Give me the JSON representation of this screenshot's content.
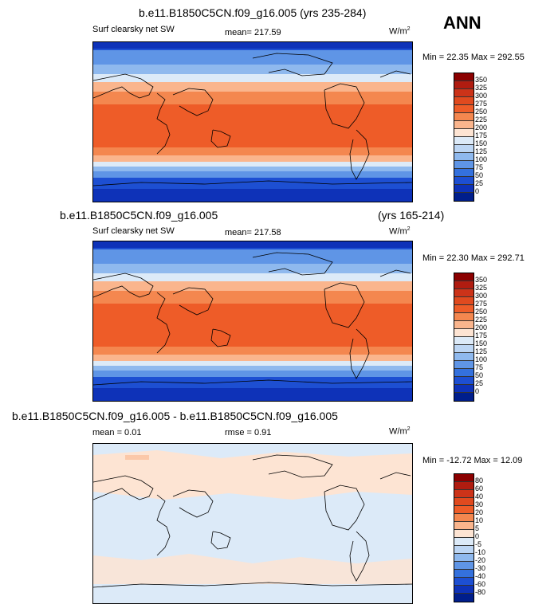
{
  "season": "ANN",
  "units": "W/m",
  "units_exp": "2",
  "panels": [
    {
      "title": "b.e11.B1850C5CN.f09_g16.005 (yrs 235-284)",
      "variable": "Surf clearsky net SW",
      "stat": "mean= 217.59",
      "minmax": "Min = 22.35 Max = 292.55",
      "levels": [
        "350",
        "325",
        "300",
        "275",
        "250",
        "225",
        "200",
        "175",
        "150",
        "125",
        "100",
        "75",
        "50",
        "25",
        "0"
      ],
      "colors": [
        "#8b0000",
        "#b01c10",
        "#cc3319",
        "#e04a1f",
        "#ee5c28",
        "#f4874f",
        "#fab58d",
        "#fde4d3",
        "#dceaf8",
        "#bdd6f4",
        "#8fb9ee",
        "#5f95e6",
        "#3471dd",
        "#1d4fd2",
        "#0e32b8",
        "#001e8c"
      ]
    },
    {
      "title": "b.e11.B1850C5CN.f09_g16.005",
      "title_right": "(yrs 165-214)",
      "variable": "Surf clearsky net SW",
      "stat": "mean= 217.58",
      "minmax": "Min = 22.30 Max = 292.71",
      "levels": [
        "350",
        "325",
        "300",
        "275",
        "250",
        "225",
        "200",
        "175",
        "150",
        "125",
        "100",
        "75",
        "50",
        "25",
        "0"
      ],
      "colors": [
        "#8b0000",
        "#b01c10",
        "#cc3319",
        "#e04a1f",
        "#ee5c28",
        "#f4874f",
        "#fab58d",
        "#fde4d3",
        "#dceaf8",
        "#bdd6f4",
        "#8fb9ee",
        "#5f95e6",
        "#3471dd",
        "#1d4fd2",
        "#0e32b8",
        "#001e8c"
      ]
    },
    {
      "title": "b.e11.B1850C5CN.f09_g16.005 - b.e11.B1850C5CN.f09_g16.005",
      "variable": "mean =   0.01",
      "stat": "rmse =   0.91",
      "minmax": "Min = -12.72 Max = 12.09",
      "levels": [
        "80",
        "60",
        "40",
        "30",
        "20",
        "10",
        "5",
        "0",
        "-5",
        "-10",
        "-20",
        "-30",
        "-40",
        "-60",
        "-80"
      ],
      "colors": [
        "#8b0000",
        "#b01c10",
        "#cc3319",
        "#e04a1f",
        "#ee5c28",
        "#f4874f",
        "#fab58d",
        "#fde4d3",
        "#dceaf8",
        "#bdd6f4",
        "#8fb9ee",
        "#5f95e6",
        "#3471dd",
        "#1d4fd2",
        "#0e32b8",
        "#001e8c"
      ]
    }
  ]
}
